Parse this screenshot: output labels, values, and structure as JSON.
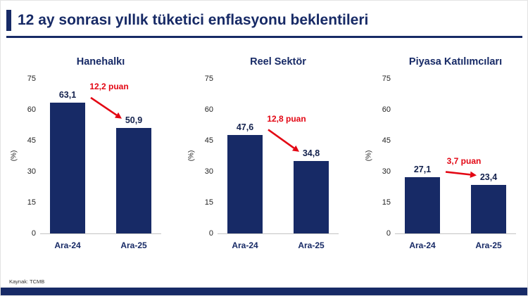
{
  "header": {
    "title": "12 ay sonrası yıllık tüketici enflasyonu beklentileri"
  },
  "footer": {
    "source": "Kaynak: TCMB"
  },
  "colors": {
    "navy": "#172a66",
    "red": "#e30613",
    "axis": "#c4c4c4"
  },
  "chart_data": [
    {
      "type": "bar",
      "title": "Hanehalkı",
      "categories": [
        "Ara-24",
        "Ara-25"
      ],
      "values": [
        63.1,
        50.9
      ],
      "value_labels": [
        "63,1",
        "50,9"
      ],
      "annotation": "12,2 puan",
      "ylabel": "(%)",
      "ylim": [
        0,
        75
      ],
      "yticks": [
        0,
        15,
        30,
        45,
        60,
        75
      ],
      "grid": false,
      "legend": "none"
    },
    {
      "type": "bar",
      "title": "Reel Sektör",
      "categories": [
        "Ara-24",
        "Ara-25"
      ],
      "values": [
        47.6,
        34.8
      ],
      "value_labels": [
        "47,6",
        "34,8"
      ],
      "annotation": "12,8 puan",
      "ylabel": "(%)",
      "ylim": [
        0,
        75
      ],
      "yticks": [
        0,
        15,
        30,
        45,
        60,
        75
      ],
      "grid": false,
      "legend": "none"
    },
    {
      "type": "bar",
      "title": "Piyasa Katılımcıları",
      "categories": [
        "Ara-24",
        "Ara-25"
      ],
      "values": [
        27.1,
        23.4
      ],
      "value_labels": [
        "27,1",
        "23,4"
      ],
      "annotation": "3,7 puan",
      "ylabel": "(%)",
      "ylim": [
        0,
        75
      ],
      "yticks": [
        0,
        15,
        30,
        45,
        60,
        75
      ],
      "grid": false,
      "legend": "none"
    }
  ]
}
